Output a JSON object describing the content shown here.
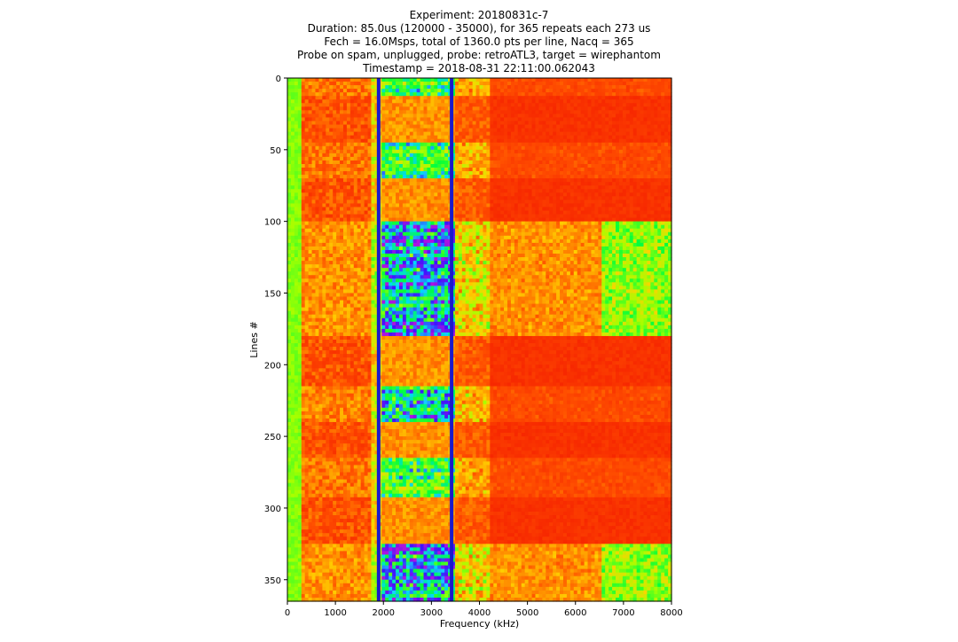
{
  "chart_data": {
    "type": "heatmap",
    "title_lines": [
      "Experiment: 20180831c-7",
      "Duration: 85.0us (120000 - 35000), for 365 repeats each 273 us",
      "Fech = 16.0Msps, total of 1360.0 pts per line, Nacq = 365",
      "Probe on spam, unplugged, probe: retroATL3, target = wirephantom",
      "Timestamp = 2018-08-31 22:11:00.062043"
    ],
    "xlabel": "Frequency (kHz)",
    "ylabel": "Lines #",
    "xlim": [
      0,
      8000
    ],
    "ylim": [
      365,
      0
    ],
    "x_ticks": [
      "0",
      "1000",
      "2000",
      "3000",
      "4000",
      "5000",
      "6000",
      "7000",
      "8000"
    ],
    "y_ticks": [
      "0",
      "50",
      "100",
      "150",
      "200",
      "250",
      "300",
      "350"
    ],
    "colormap": "prism-like (red / orange / yellow / green / cyan / blue / violet)",
    "vertical_markers_khz": [
      1900,
      3420
    ],
    "marker_color": "#1a1acc",
    "bands": [
      {
        "from_line": 0,
        "to_line": 12,
        "pattern": "weak"
      },
      {
        "from_line": 12,
        "to_line": 45,
        "pattern": "quiet"
      },
      {
        "from_line": 45,
        "to_line": 70,
        "pattern": "weak"
      },
      {
        "from_line": 70,
        "to_line": 100,
        "pattern": "quiet"
      },
      {
        "from_line": 100,
        "to_line": 180,
        "pattern": "strong"
      },
      {
        "from_line": 180,
        "to_line": 215,
        "pattern": "quiet"
      },
      {
        "from_line": 215,
        "to_line": 238,
        "pattern": "medium"
      },
      {
        "from_line": 238,
        "to_line": 265,
        "pattern": "quiet"
      },
      {
        "from_line": 265,
        "to_line": 292,
        "pattern": "weak"
      },
      {
        "from_line": 292,
        "to_line": 325,
        "pattern": "quiet"
      },
      {
        "from_line": 325,
        "to_line": 365,
        "pattern": "strong"
      }
    ],
    "grid": false,
    "legend": "none"
  }
}
